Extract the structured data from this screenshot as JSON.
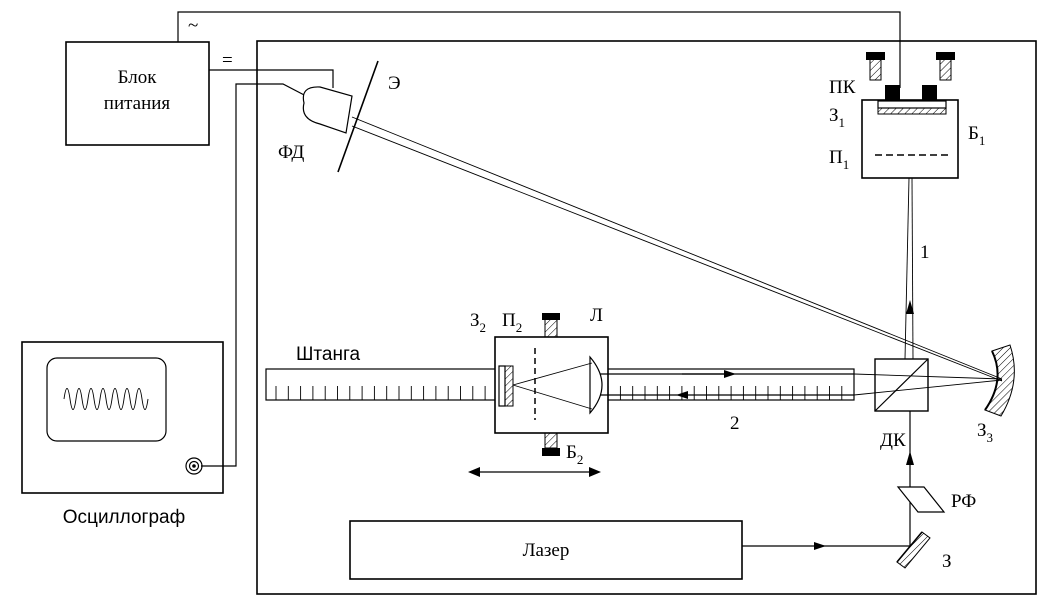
{
  "labels": {
    "ac_symbol": "~",
    "dc_symbol": "=",
    "power_unit_line1": "Блок",
    "power_unit_line2": "питания",
    "photodiode": "ФД",
    "screen": "Э",
    "oscilloscope": "Осциллограф",
    "rod": "Штанга",
    "laser": "Лазер",
    "mirror_3_main": "З",
    "mirror_3_sub": "3",
    "mirror_2_main": "З",
    "mirror_2_sub": "2",
    "aperture_2_main": "П",
    "aperture_2_sub": "2",
    "lens": "Л",
    "block_2_main": "Б",
    "block_2_sub": "2",
    "beam_1": "1",
    "beam_2": "2",
    "beam_splitter": "ДК",
    "piezo": "ПК",
    "mirror_1_main": "З",
    "mirror_1_sub": "1",
    "block_1_main": "Б",
    "block_1_sub": "1",
    "aperture_1_main": "П",
    "aperture_1_sub": "1",
    "polarizer_filter": "РФ",
    "mirror_small": "З"
  }
}
